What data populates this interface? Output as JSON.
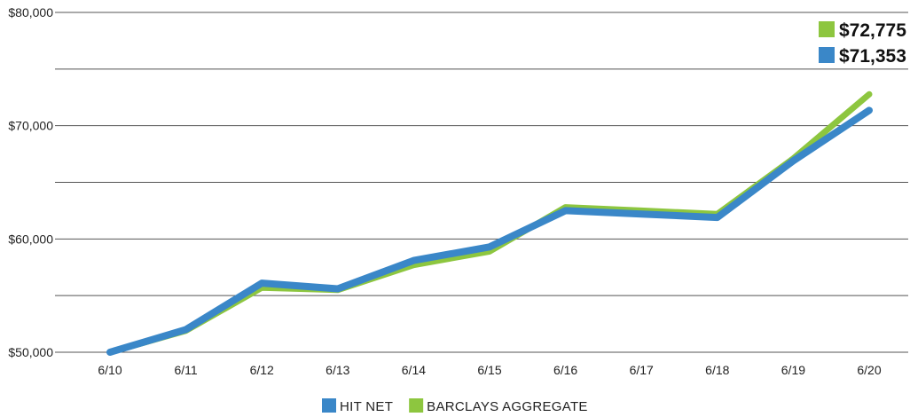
{
  "chart_data": {
    "type": "line",
    "title": "",
    "xlabel": "",
    "ylabel": "",
    "categories": [
      "6/10",
      "6/11",
      "6/12",
      "6/13",
      "6/14",
      "6/15",
      "6/16",
      "6/17",
      "6/18",
      "6/19",
      "6/20"
    ],
    "ylim": [
      50000,
      80000
    ],
    "yticks": [
      50000,
      60000,
      70000,
      80000
    ],
    "ytick_labels": [
      "$50,000",
      "$60,000",
      "$70,000",
      "$80,000"
    ],
    "grid": true,
    "legend_position": "bottom",
    "series": [
      {
        "name": "BARCLAYS AGGREGATE",
        "color": "#8dc63f",
        "values": [
          50000,
          51900,
          55700,
          55500,
          57700,
          58900,
          62800,
          62500,
          62200,
          67100,
          72775
        ],
        "end_label": "$72,775"
      },
      {
        "name": "HIT NET",
        "color": "#3a87c8",
        "values": [
          50000,
          52000,
          56100,
          55600,
          58100,
          59300,
          62500,
          62200,
          61900,
          66900,
          71353
        ],
        "end_label": "$71,353"
      }
    ],
    "legend_order": [
      1,
      0
    ]
  }
}
